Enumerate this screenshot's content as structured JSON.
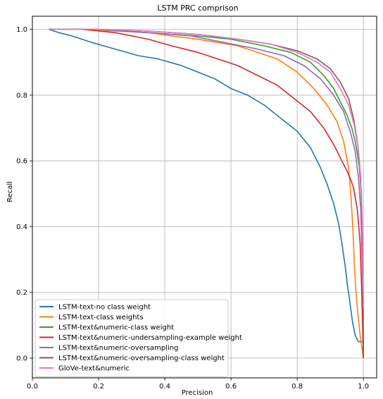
{
  "chart_data": {
    "type": "line",
    "title": "LSTM PRC comprison",
    "xlabel": "Precision",
    "ylabel": "Recall",
    "xlim": [
      0.0,
      1.04
    ],
    "ylim": [
      -0.06,
      1.04
    ],
    "xticks": [
      0.0,
      0.2,
      0.4,
      0.6,
      0.8,
      1.0
    ],
    "yticks": [
      0.0,
      0.2,
      0.4,
      0.6,
      0.8,
      1.0
    ],
    "xtick_labels": [
      "0.0",
      "0.2",
      "0.4",
      "0.6",
      "0.8",
      "1.0"
    ],
    "ytick_labels": [
      "0.0",
      "0.2",
      "0.4",
      "0.6",
      "0.8",
      "1.0"
    ],
    "grid": true,
    "legend_position": "lower-left",
    "series": [
      {
        "name": "LSTM-text-no class weight",
        "color": "#1f77b4",
        "x": [
          0.05,
          0.08,
          0.12,
          0.18,
          0.25,
          0.32,
          0.38,
          0.45,
          0.5,
          0.55,
          0.6,
          0.65,
          0.7,
          0.75,
          0.8,
          0.84,
          0.87,
          0.89,
          0.91,
          0.925,
          0.935,
          0.945,
          0.952,
          0.958,
          0.963,
          0.967,
          0.971,
          0.975,
          0.985,
          1.0
        ],
        "y": [
          1.0,
          0.99,
          0.98,
          0.96,
          0.94,
          0.92,
          0.91,
          0.89,
          0.87,
          0.85,
          0.82,
          0.8,
          0.77,
          0.73,
          0.69,
          0.64,
          0.58,
          0.53,
          0.47,
          0.41,
          0.35,
          0.28,
          0.22,
          0.18,
          0.14,
          0.11,
          0.09,
          0.07,
          0.05,
          0.05
        ]
      },
      {
        "name": "LSTM-text-class weights",
        "color": "#ff7f0e",
        "x": [
          0.05,
          0.15,
          0.25,
          0.35,
          0.42,
          0.5,
          0.56,
          0.62,
          0.68,
          0.74,
          0.8,
          0.85,
          0.89,
          0.92,
          0.94,
          0.955,
          0.962,
          0.968,
          0.972,
          0.976,
          0.98,
          0.985,
          0.99,
          1.0
        ],
        "y": [
          1.0,
          1.0,
          0.995,
          0.99,
          0.98,
          0.97,
          0.96,
          0.95,
          0.93,
          0.91,
          0.87,
          0.82,
          0.77,
          0.72,
          0.66,
          0.58,
          0.5,
          0.4,
          0.3,
          0.22,
          0.17,
          0.12,
          0.07,
          0.0
        ]
      },
      {
        "name": "LSTM-text&numeric-class weight",
        "color": "#2ca02c",
        "x": [
          0.05,
          0.2,
          0.35,
          0.5,
          0.6,
          0.7,
          0.78,
          0.84,
          0.88,
          0.91,
          0.93,
          0.95,
          0.965,
          0.975,
          0.982,
          0.988,
          0.992,
          0.995,
          0.998,
          1.0
        ],
        "y": [
          1.0,
          1.0,
          0.99,
          0.98,
          0.97,
          0.95,
          0.93,
          0.9,
          0.86,
          0.82,
          0.78,
          0.74,
          0.7,
          0.66,
          0.62,
          0.58,
          0.52,
          0.45,
          0.2,
          0.0
        ]
      },
      {
        "name": "LSTM-text&numeric-undersampling-example weight",
        "color": "#d62728",
        "x": [
          0.05,
          0.15,
          0.25,
          0.35,
          0.42,
          0.5,
          0.56,
          0.62,
          0.68,
          0.74,
          0.79,
          0.84,
          0.88,
          0.91,
          0.935,
          0.955,
          0.97,
          0.982,
          0.99,
          0.995,
          1.0
        ],
        "y": [
          1.0,
          1.0,
          0.99,
          0.97,
          0.95,
          0.93,
          0.91,
          0.89,
          0.86,
          0.83,
          0.79,
          0.75,
          0.7,
          0.65,
          0.6,
          0.56,
          0.52,
          0.45,
          0.35,
          0.2,
          0.0
        ]
      },
      {
        "name": "LSTM-text&numeric-oversampling",
        "color": "#9467bd",
        "x": [
          0.05,
          0.2,
          0.35,
          0.48,
          0.58,
          0.68,
          0.76,
          0.82,
          0.87,
          0.91,
          0.94,
          0.96,
          0.975,
          0.985,
          0.992,
          0.996,
          1.0
        ],
        "y": [
          1.0,
          1.0,
          0.99,
          0.98,
          0.96,
          0.94,
          0.92,
          0.89,
          0.85,
          0.8,
          0.75,
          0.69,
          0.63,
          0.55,
          0.45,
          0.3,
          0.15
        ]
      },
      {
        "name": "LSTM-text&numeric-oversampling-class weight",
        "color": "#8c564b",
        "x": [
          0.05,
          0.2,
          0.35,
          0.5,
          0.62,
          0.72,
          0.8,
          0.86,
          0.9,
          0.93,
          0.955,
          0.97,
          0.98,
          0.988,
          0.994,
          0.998,
          1.0
        ],
        "y": [
          1.0,
          1.0,
          0.995,
          0.985,
          0.97,
          0.955,
          0.935,
          0.91,
          0.88,
          0.84,
          0.79,
          0.73,
          0.67,
          0.6,
          0.5,
          0.35,
          0.0
        ]
      },
      {
        "name": "GloVe-text&numeric",
        "color": "#e377c2",
        "x": [
          0.05,
          0.2,
          0.35,
          0.5,
          0.62,
          0.72,
          0.8,
          0.86,
          0.9,
          0.93,
          0.955,
          0.972,
          0.984,
          0.992,
          0.997,
          1.0
        ],
        "y": [
          1.0,
          1.0,
          0.995,
          0.985,
          0.97,
          0.955,
          0.93,
          0.9,
          0.87,
          0.82,
          0.77,
          0.71,
          0.64,
          0.55,
          0.4,
          0.15
        ]
      }
    ]
  }
}
